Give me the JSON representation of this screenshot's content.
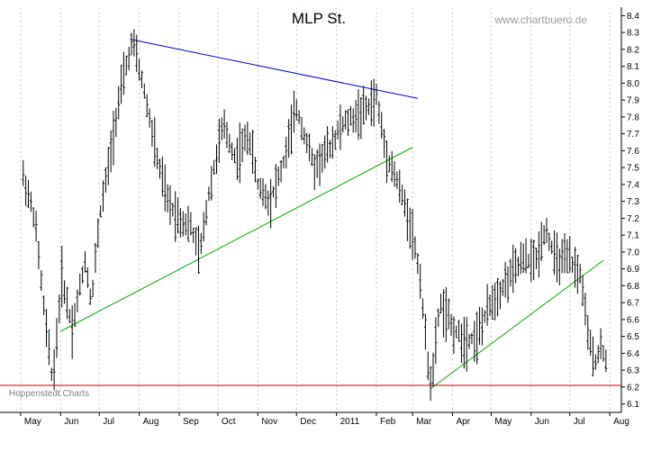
{
  "chart_data": {
    "type": "ohlc",
    "title": "MLP St.",
    "watermark": "www.chartbuero.de",
    "source_note": "Hoppenstedt Charts",
    "xlabel": "",
    "ylabel": "",
    "ylim": [
      6.05,
      8.45
    ],
    "y_ticks": [
      6.1,
      6.2,
      6.3,
      6.4,
      6.5,
      6.6,
      6.7,
      6.8,
      6.9,
      7.0,
      7.1,
      7.2,
      7.3,
      7.4,
      7.5,
      7.6,
      7.7,
      7.8,
      7.9,
      8.0,
      8.1,
      8.2,
      8.3,
      8.4
    ],
    "x_ticks": [
      "May",
      "Jun",
      "Jul",
      "Aug",
      "Sep",
      "Oct",
      "Nov",
      "Dec",
      "2011",
      "Feb",
      "Mar",
      "Apr",
      "May",
      "Jun",
      "Jul",
      "Aug"
    ],
    "y_axis_side": "right",
    "grid": "vertical dashed at month boundaries",
    "colors": {
      "bars": "#000000",
      "resistance_line": "#0000cc",
      "support_lines": "#00aa00",
      "horizontal_support": "#cc0000",
      "grid": "#c8c8c8"
    },
    "price_path": [
      [
        "2010-05-03",
        7.45
      ],
      [
        "2010-05-12",
        7.2
      ],
      [
        "2010-05-20",
        6.6
      ],
      [
        "2010-05-26",
        6.22
      ],
      [
        "2010-06-02",
        6.85
      ],
      [
        "2010-06-10",
        6.55
      ],
      [
        "2010-06-20",
        6.95
      ],
      [
        "2010-06-25",
        6.7
      ],
      [
        "2010-07-01",
        7.2
      ],
      [
        "2010-07-08",
        7.5
      ],
      [
        "2010-07-15",
        7.85
      ],
      [
        "2010-07-22",
        8.1
      ],
      [
        "2010-07-27",
        8.25
      ],
      [
        "2010-08-05",
        7.95
      ],
      [
        "2010-08-15",
        7.55
      ],
      [
        "2010-08-23",
        7.3
      ],
      [
        "2010-09-01",
        7.2
      ],
      [
        "2010-09-10",
        7.15
      ],
      [
        "2010-09-17",
        6.98
      ],
      [
        "2010-09-24",
        7.35
      ],
      [
        "2010-10-05",
        7.75
      ],
      [
        "2010-10-15",
        7.55
      ],
      [
        "2010-10-25",
        7.7
      ],
      [
        "2010-11-01",
        7.4
      ],
      [
        "2010-11-10",
        7.3
      ],
      [
        "2010-11-20",
        7.5
      ],
      [
        "2010-12-01",
        7.85
      ],
      [
        "2010-12-15",
        7.5
      ],
      [
        "2010-12-25",
        7.6
      ],
      [
        "2011-01-05",
        7.75
      ],
      [
        "2011-01-15",
        7.8
      ],
      [
        "2011-01-25",
        7.85
      ],
      [
        "2011-02-01",
        7.92
      ],
      [
        "2011-02-08",
        7.6
      ],
      [
        "2011-02-18",
        7.4
      ],
      [
        "2011-02-28",
        7.15
      ],
      [
        "2011-03-07",
        6.85
      ],
      [
        "2011-03-12",
        6.4
      ],
      [
        "2011-03-16",
        6.2
      ],
      [
        "2011-03-22",
        6.7
      ],
      [
        "2011-04-01",
        6.55
      ],
      [
        "2011-04-10",
        6.48
      ],
      [
        "2011-04-20",
        6.5
      ],
      [
        "2011-05-01",
        6.7
      ],
      [
        "2011-05-15",
        6.85
      ],
      [
        "2011-05-25",
        6.95
      ],
      [
        "2011-06-05",
        6.95
      ],
      [
        "2011-06-12",
        7.15
      ],
      [
        "2011-06-20",
        6.95
      ],
      [
        "2011-07-01",
        6.95
      ],
      [
        "2011-07-10",
        6.85
      ],
      [
        "2011-07-15",
        6.5
      ],
      [
        "2011-07-20",
        6.35
      ],
      [
        "2011-07-26",
        6.45
      ],
      [
        "2011-07-29",
        6.35
      ]
    ],
    "trend_lines": [
      {
        "color": "resistance_line",
        "from": [
          "2010-07-25",
          8.26
        ],
        "to": [
          "2011-03-05",
          7.91
        ]
      },
      {
        "color": "support_lines",
        "from": [
          "2010-06-01",
          6.53
        ],
        "to": [
          "2011-03-01",
          7.62
        ]
      },
      {
        "color": "support_lines",
        "from": [
          "2011-03-15",
          6.19
        ],
        "to": [
          "2011-07-27",
          6.95
        ]
      },
      {
        "color": "horizontal_support",
        "from": [
          "2010-04-15",
          6.21
        ],
        "to": [
          "2011-08-10",
          6.21
        ]
      }
    ]
  }
}
